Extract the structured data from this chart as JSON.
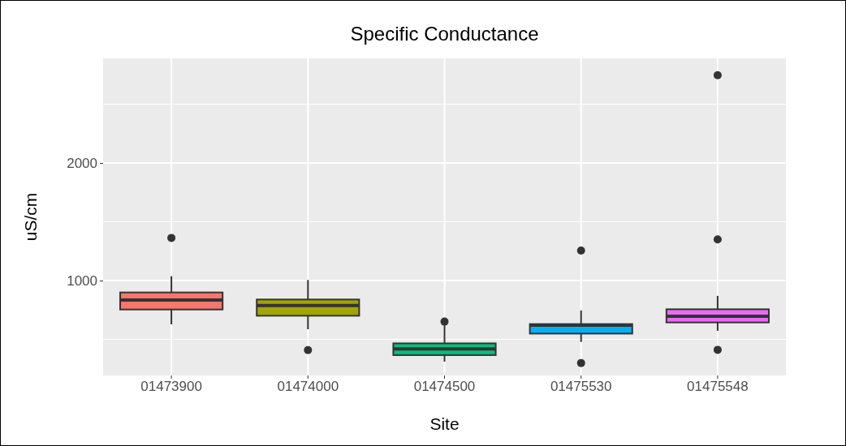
{
  "chart_data": {
    "type": "box",
    "title": "Specific Conductance",
    "xlabel": "Site",
    "ylabel": "uS/cm",
    "categories": [
      "01473900",
      "01474000",
      "01474500",
      "01475530",
      "01475548"
    ],
    "colors": [
      "#f8766d",
      "#a3a500",
      "#00bf7d",
      "#00b0f6",
      "#e76bf3"
    ],
    "boxes": [
      {
        "low": 628,
        "q1": 754,
        "median": 834,
        "q3": 899,
        "high": 1037,
        "outliers": [
          1363
        ]
      },
      {
        "low": 586,
        "q1": 701,
        "median": 788,
        "q3": 839,
        "high": 1005,
        "outliers": [
          409
        ]
      },
      {
        "low": 311,
        "q1": 366,
        "median": 419,
        "q3": 466,
        "high": 640,
        "outliers": [
          651
        ]
      },
      {
        "low": 478,
        "q1": 549,
        "median": 620,
        "q3": 630,
        "high": 746,
        "outliers": [
          1255,
          299
        ]
      },
      {
        "low": 573,
        "q1": 644,
        "median": 697,
        "q3": 756,
        "high": 870,
        "outliers": [
          1350,
          2747,
          411
        ]
      }
    ],
    "ylim": [
      193,
      2890
    ],
    "yticks": [
      {
        "value": 500,
        "label": null
      },
      1000,
      {
        "value": 1500,
        "label": null
      },
      2000,
      {
        "value": 2500,
        "label": null
      }
    ],
    "grid": true
  }
}
